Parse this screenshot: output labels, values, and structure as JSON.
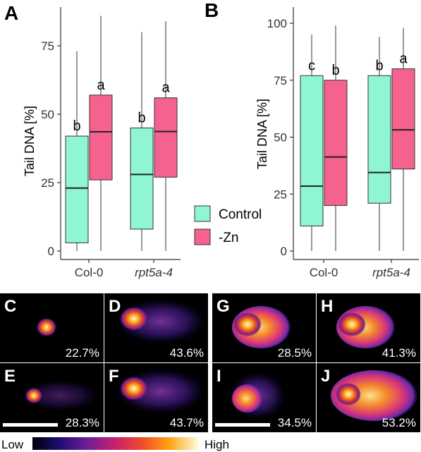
{
  "colors": {
    "control": "#8ff5d2",
    "zn": "#f5628e",
    "panel_bg": "#000000",
    "stroke": "#222222"
  },
  "legend": {
    "items": [
      "Control",
      "-Zn"
    ]
  },
  "chart_data": [
    {
      "type": "boxplot",
      "panel": "A",
      "ylabel": "Tail DNA [%]",
      "ylim": [
        0,
        90
      ],
      "yticks": [
        0,
        25,
        50,
        75
      ],
      "categories": [
        "Col-0",
        "rpt5a-4"
      ],
      "series": [
        {
          "name": "Control",
          "boxes": [
            {
              "category": "Col-0",
              "min": 0,
              "q1": 3,
              "median": 23,
              "q3": 42,
              "max": 73,
              "letter": "b"
            },
            {
              "category": "rpt5a-4",
              "min": 0,
              "q1": 8,
              "median": 28,
              "q3": 45,
              "max": 80,
              "letter": "b"
            }
          ]
        },
        {
          "name": "-Zn",
          "boxes": [
            {
              "category": "Col-0",
              "min": 0,
              "q1": 26,
              "median": 43.6,
              "q3": 57,
              "max": 86,
              "letter": "a"
            },
            {
              "category": "rpt5a-4",
              "min": 0,
              "q1": 27,
              "median": 43.7,
              "q3": 56,
              "max": 84,
              "letter": "a"
            }
          ]
        }
      ]
    },
    {
      "type": "boxplot",
      "panel": "B",
      "ylabel": "Tail DNA [%]",
      "ylim": [
        0,
        100
      ],
      "yticks": [
        0,
        25,
        50,
        75,
        100
      ],
      "categories": [
        "Col-0",
        "rpt5a-4"
      ],
      "series": [
        {
          "name": "Control",
          "boxes": [
            {
              "category": "Col-0",
              "min": 0,
              "q1": 11,
              "median": 28.5,
              "q3": 77,
              "max": 95,
              "letter": "c"
            },
            {
              "category": "rpt5a-4",
              "min": 0,
              "q1": 21,
              "median": 34.5,
              "q3": 77,
              "max": 94,
              "letter": "b"
            }
          ]
        },
        {
          "name": "-Zn",
          "boxes": [
            {
              "category": "Col-0",
              "min": 0,
              "q1": 20,
              "median": 41.3,
              "q3": 75,
              "max": 99,
              "letter": "b"
            },
            {
              "category": "rpt5a-4",
              "min": 0,
              "q1": 36,
              "median": 53.2,
              "q3": 80,
              "max": 98,
              "letter": "a"
            }
          ]
        }
      ]
    }
  ],
  "comets": [
    {
      "panel": "C",
      "value": "22.7%",
      "scalebar": false,
      "shape": "small"
    },
    {
      "panel": "D",
      "value": "43.6%",
      "scalebar": false,
      "shape": "cloud"
    },
    {
      "panel": "E",
      "value": "28.3%",
      "scalebar": true,
      "shape": "speckle"
    },
    {
      "panel": "F",
      "value": "43.7%",
      "scalebar": false,
      "shape": "cloud"
    },
    {
      "panel": "G",
      "value": "28.5%",
      "scalebar": false,
      "shape": "oval"
    },
    {
      "panel": "H",
      "value": "41.3%",
      "scalebar": false,
      "shape": "oval"
    },
    {
      "panel": "I",
      "value": "34.5%",
      "scalebar": true,
      "shape": "blob"
    },
    {
      "panel": "J",
      "value": "53.2%",
      "scalebar": false,
      "shape": "big"
    }
  ],
  "colorbar": {
    "low": "Low",
    "high": "High"
  }
}
